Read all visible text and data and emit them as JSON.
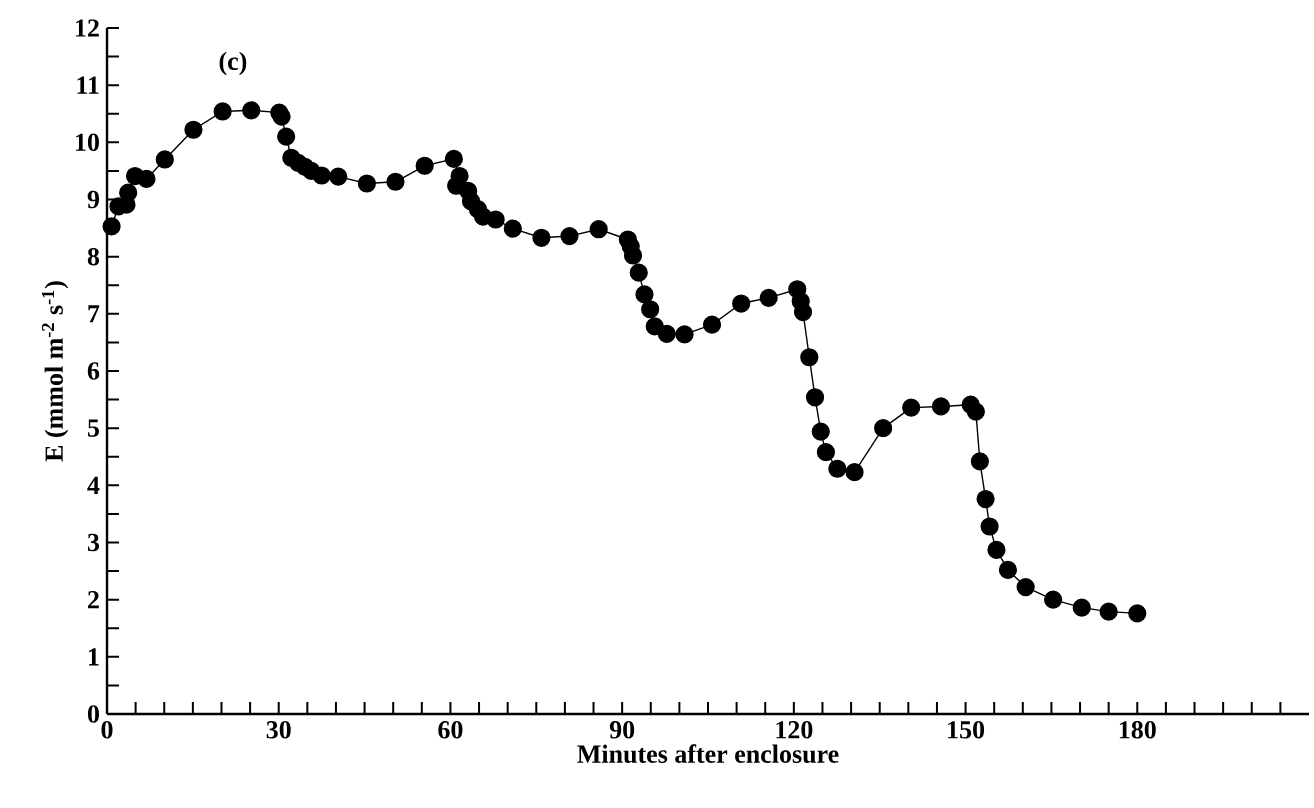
{
  "chart_data": {
    "type": "line",
    "title": "(c)",
    "xlabel": "Minutes after enclosure",
    "ylabel": "E (mmol m$^{-2}$ s$^{-1}$)",
    "xlim": [
      0,
      210
    ],
    "ylim": [
      0,
      12
    ],
    "xticks": [
      0,
      {
        "value": 5,
        "label": null
      },
      {
        "value": 10,
        "label": null
      },
      {
        "value": 15,
        "label": null
      },
      {
        "value": 20,
        "label": null
      },
      {
        "value": 25,
        "label": null
      },
      30,
      {
        "value": 35,
        "label": null
      },
      {
        "value": 40,
        "label": null
      },
      {
        "value": 45,
        "label": null
      },
      {
        "value": 50,
        "label": null
      },
      {
        "value": 55,
        "label": null
      },
      60,
      {
        "value": 65,
        "label": null
      },
      {
        "value": 70,
        "label": null
      },
      {
        "value": 75,
        "label": null
      },
      {
        "value": 80,
        "label": null
      },
      {
        "value": 85,
        "label": null
      },
      90,
      {
        "value": 95,
        "label": null
      },
      {
        "value": 100,
        "label": null
      },
      {
        "value": 105,
        "label": null
      },
      {
        "value": 110,
        "label": null
      },
      {
        "value": 115,
        "label": null
      },
      120,
      {
        "value": 125,
        "label": null
      },
      {
        "value": 130,
        "label": null
      },
      {
        "value": 135,
        "label": null
      },
      {
        "value": 140,
        "label": null
      },
      {
        "value": 145,
        "label": null
      },
      150,
      {
        "value": 155,
        "label": null
      },
      {
        "value": 160,
        "label": null
      },
      {
        "value": 165,
        "label": null
      },
      {
        "value": 170,
        "label": null
      },
      {
        "value": 175,
        "label": null
      },
      180,
      {
        "value": 185,
        "label": null
      },
      {
        "value": 190,
        "label": null
      },
      {
        "value": 195,
        "label": null
      },
      {
        "value": 200,
        "label": null
      },
      {
        "value": 205,
        "label": null
      }
    ],
    "yticks": [
      0,
      {
        "value": 0.5,
        "label": null
      },
      1,
      {
        "value": 1.5,
        "label": null
      },
      2,
      {
        "value": 2.5,
        "label": null
      },
      3,
      {
        "value": 3.5,
        "label": null
      },
      4,
      {
        "value": 4.5,
        "label": null
      },
      5,
      {
        "value": 5.5,
        "label": null
      },
      6,
      {
        "value": 6.5,
        "label": null
      },
      7,
      {
        "value": 7.5,
        "label": null
      },
      8,
      {
        "value": 8.5,
        "label": null
      },
      9,
      {
        "value": 9.5,
        "label": null
      },
      10,
      {
        "value": 10.5,
        "label": null
      },
      11,
      {
        "value": 11.5,
        "label": null
      },
      12
    ],
    "marker": "circle",
    "line_style": "solid",
    "series": [
      {
        "color": "#000000",
        "x": [
          0.8,
          2.0,
          3.4,
          3.7,
          4.9,
          6.9,
          10.1,
          15.1,
          20.2,
          25.2,
          30.1,
          30.5,
          31.3,
          32.2,
          33.4,
          34.6,
          35.7,
          37.5,
          40.4,
          45.4,
          50.4,
          55.5,
          60.6,
          61.6,
          61.0,
          63.1,
          63.6,
          64.8,
          65.7,
          67.9,
          70.9,
          75.9,
          80.8,
          85.9,
          91.0,
          91.5,
          91.9,
          92.9,
          93.9,
          94.9,
          95.7,
          97.8,
          100.9,
          105.7,
          110.8,
          115.6,
          120.6,
          121.2,
          121.6,
          122.7,
          123.7,
          124.7,
          125.6,
          127.6,
          130.6,
          135.6,
          140.5,
          145.7,
          150.9,
          151.8,
          152.5,
          153.5,
          154.2,
          155.4,
          157.4,
          160.5,
          165.3,
          170.3,
          175.0,
          180.0
        ],
        "values": [
          8.53,
          8.88,
          8.91,
          9.12,
          9.41,
          9.36,
          9.7,
          10.22,
          10.54,
          10.56,
          10.52,
          10.45,
          10.1,
          9.73,
          9.64,
          9.57,
          9.5,
          9.42,
          9.4,
          9.28,
          9.31,
          9.59,
          9.71,
          9.41,
          9.24,
          9.15,
          8.97,
          8.83,
          8.7,
          8.65,
          8.49,
          8.33,
          8.36,
          8.48,
          8.3,
          8.18,
          8.02,
          7.72,
          7.34,
          7.08,
          6.78,
          6.65,
          6.64,
          6.81,
          7.18,
          7.28,
          7.43,
          7.22,
          7.03,
          6.24,
          5.54,
          4.94,
          4.58,
          4.29,
          4.23,
          5.0,
          5.36,
          5.38,
          5.41,
          5.29,
          4.42,
          3.76,
          3.28,
          2.87,
          2.52,
          2.22,
          2.0,
          1.86,
          1.79,
          1.76
        ]
      }
    ]
  }
}
